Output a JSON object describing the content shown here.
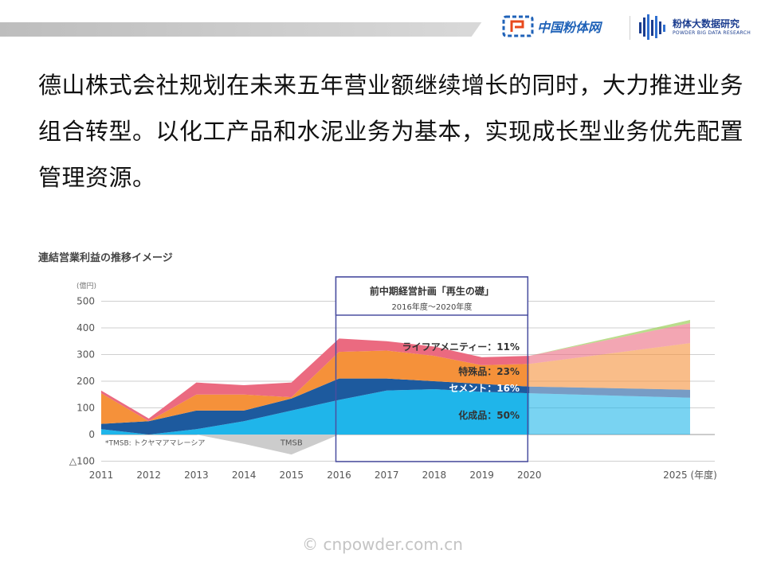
{
  "header": {
    "logo_left_text": "中国粉体网",
    "logo_right_title": "粉体大数据研究",
    "logo_right_subtitle": "POWDER BIG DATA RESEARCH"
  },
  "paragraph": "德山株式会社规划在未来五年营业额继续增长的同时，大力推进业务组合转型。以化工产品和水泥业务为基本，实现成长型业务优先配置管理资源。",
  "watermark": "© cnpowder.com.cn",
  "colors": {
    "chemical": "#1fb5ea",
    "cement": "#1d5a9e",
    "specialty": "#f5913a",
    "lifeamenity": "#eb6a80",
    "new_business": "#8cc63f",
    "tmsb": "#cccccc",
    "plan_box": "#4a4fa0"
  },
  "chart_data": {
    "type": "area",
    "title": "連結営業利益の推移イメージ",
    "yunit": "(億円)",
    "ylim": [
      -100,
      500
    ],
    "yticks": [
      -100,
      0,
      100,
      200,
      300,
      400,
      500
    ],
    "ytick_labels": [
      "△100",
      "0",
      "100",
      "200",
      "300",
      "400",
      "500"
    ],
    "x": [
      2011,
      2012,
      2013,
      2014,
      2015,
      2016,
      2017,
      2018,
      2019,
      2020
    ],
    "xtick_labels": [
      "2011",
      "2012",
      "2013",
      "2014",
      "2015",
      "2016",
      "2017",
      "2018",
      "2019",
      "2020"
    ],
    "xtick_last_label": "2025 (年度)",
    "series": [
      {
        "name": "化成品",
        "values": [
          20,
          0,
          20,
          50,
          90,
          130,
          165,
          170,
          160,
          155
        ]
      },
      {
        "name": "セメント",
        "values": [
          20,
          50,
          70,
          40,
          45,
          80,
          45,
          30,
          30,
          25
        ]
      },
      {
        "name": "特殊品",
        "values": [
          115,
          0,
          60,
          60,
          5,
          100,
          105,
          95,
          70,
          85
        ]
      },
      {
        "name": "ライフアメニティー",
        "values": [
          10,
          10,
          45,
          35,
          55,
          50,
          35,
          35,
          30,
          30
        ]
      }
    ],
    "tmsb": {
      "label": "TMSB",
      "values": [
        0,
        0,
        0,
        -35,
        -75,
        0
      ]
    },
    "tmsb_note": "*TMSB: トクヤマアマレーシア",
    "forecast_x": [
      2020,
      2025
    ],
    "forecast": [
      {
        "name": "化成品",
        "values": [
          155,
          138
        ]
      },
      {
        "name": "セメント",
        "values": [
          25,
          30
        ]
      },
      {
        "name": "特殊品",
        "values": [
          85,
          175
        ]
      },
      {
        "name": "ライフアメニティー",
        "values": [
          30,
          75
        ]
      },
      {
        "name": "",
        "values": [
          0,
          12
        ]
      }
    ],
    "plan": {
      "title": "前中期経営計画「再生の礎」",
      "period": "2016年度～2020年度",
      "x_range": [
        2016,
        2020
      ]
    },
    "annotations": [
      "ライフアメニティー：11%",
      "特殊品：23%",
      "セメント：16%",
      "化成品：50%"
    ]
  }
}
